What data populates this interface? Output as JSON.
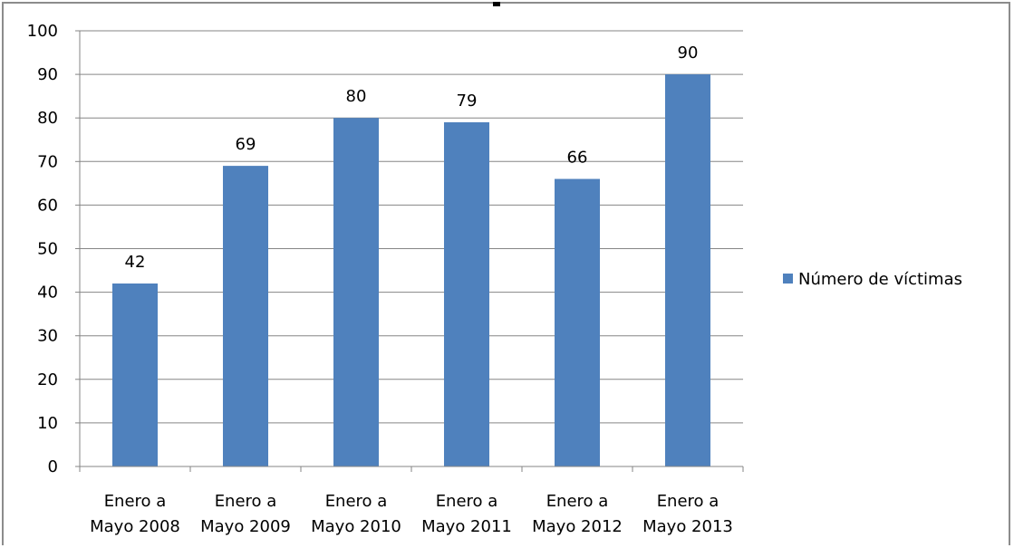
{
  "chart_data": {
    "type": "bar",
    "categories": [
      [
        "Enero a",
        "Mayo 2008"
      ],
      [
        "Enero a",
        "Mayo 2009"
      ],
      [
        "Enero a",
        "Mayo 2010"
      ],
      [
        "Enero a",
        "Mayo 2011"
      ],
      [
        "Enero a",
        "Mayo 2012"
      ],
      [
        "Enero a",
        "Mayo 2013"
      ]
    ],
    "series": [
      {
        "name": "Número de víctimas",
        "values": [
          42,
          69,
          80,
          79,
          66,
          90
        ],
        "color": "#4f81bd"
      }
    ],
    "data_labels": [
      "42",
      "69",
      "80",
      "79",
      "66",
      "90"
    ],
    "yticks": [
      "0",
      "10",
      "20",
      "30",
      "40",
      "50",
      "60",
      "70",
      "80",
      "90",
      "100"
    ],
    "ylim": [
      0,
      100
    ],
    "grid": true,
    "legend_position": "right",
    "title": "",
    "xlabel": "",
    "ylabel": ""
  }
}
